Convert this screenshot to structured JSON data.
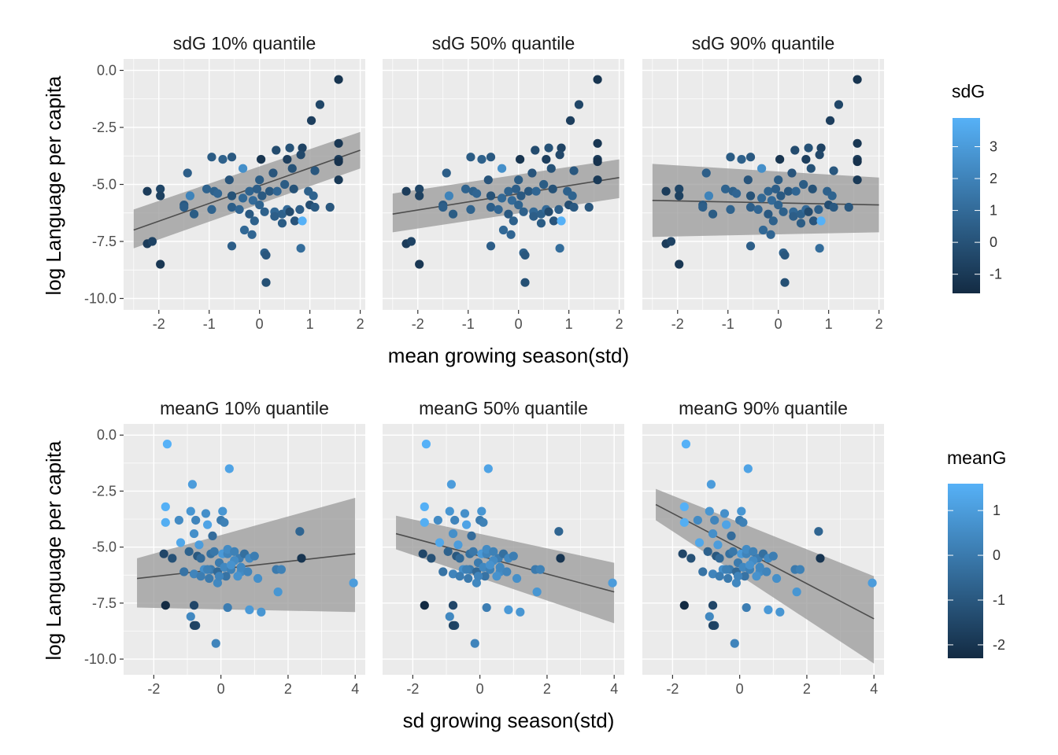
{
  "chart_data": [
    {
      "type": "scatter",
      "row": "top",
      "panel_titles": [
        "sdG 10% quantile",
        "sdG 50% quantile",
        "sdG 90% quantile"
      ],
      "xlabel": "mean growing season(std)",
      "ylabel": "log Language per capita",
      "xlim": [
        -2.7,
        2.1
      ],
      "ylim": [
        -10.5,
        0.5
      ],
      "x_ticks": [
        -2,
        -1,
        0,
        1,
        2
      ],
      "x_tick_labels": [
        "-2",
        "-1",
        "0",
        "1",
        "2"
      ],
      "y_ticks": [
        0,
        -2.5,
        -5,
        -7.5,
        -10
      ],
      "y_tick_labels": [
        "0.0",
        "-2.5",
        "-5.0",
        "-7.5",
        "-10.0"
      ],
      "grid": true,
      "legend": {
        "title": "sdG",
        "position": "right",
        "range": [
          -1.6,
          3.9
        ],
        "ticks": [
          3,
          2,
          1,
          0,
          -1
        ],
        "tick_labels": [
          "3",
          "2",
          "1",
          "0",
          "-1"
        ],
        "color_low": "#132B43",
        "color_high": "#56B1F7"
      },
      "fits": [
        {
          "x": [
            -2.5,
            2.0
          ],
          "y": [
            -7.0,
            -3.5
          ],
          "ci_lower": [
            -7.8,
            -4.3
          ],
          "ci_upper": [
            -6.1,
            -2.7
          ]
        },
        {
          "x": [
            -2.5,
            2.0
          ],
          "y": [
            -6.3,
            -4.7
          ],
          "ci_lower": [
            -7.1,
            -5.6
          ],
          "ci_upper": [
            -5.4,
            -3.9
          ]
        },
        {
          "x": [
            -2.5,
            2.0
          ],
          "y": [
            -5.7,
            -5.9
          ],
          "ci_lower": [
            -7.3,
            -7.1
          ],
          "ci_upper": [
            -4.1,
            -4.7
          ]
        }
      ],
      "points": [
        {
          "x": 1.57,
          "y": -0.4,
          "c": -1.2
        },
        {
          "x": 1.2,
          "y": -1.5,
          "c": -0.5
        },
        {
          "x": 1.03,
          "y": -2.2,
          "c": -0.8
        },
        {
          "x": 1.57,
          "y": -3.2,
          "c": -1.1
        },
        {
          "x": 1.57,
          "y": -3.9,
          "c": -0.9
        },
        {
          "x": 1.57,
          "y": -4.0,
          "c": -1.3
        },
        {
          "x": 1.57,
          "y": -4.8,
          "c": -1.0
        },
        {
          "x": 0.85,
          "y": -3.4,
          "c": -0.6
        },
        {
          "x": 0.82,
          "y": -3.7,
          "c": -0.4
        },
        {
          "x": 0.6,
          "y": -3.4,
          "c": 0.0
        },
        {
          "x": 0.33,
          "y": -3.5,
          "c": -0.3
        },
        {
          "x": 0.55,
          "y": -3.9,
          "c": -0.8
        },
        {
          "x": 1.1,
          "y": -4.4,
          "c": 0.2
        },
        {
          "x": 0.65,
          "y": -4.3,
          "c": 0.0
        },
        {
          "x": 0.27,
          "y": -4.5,
          "c": 0.1
        },
        {
          "x": 0.03,
          "y": -3.9,
          "c": -1.2
        },
        {
          "x": -0.55,
          "y": -3.8,
          "c": 0.3
        },
        {
          "x": -0.73,
          "y": -3.9,
          "c": 0.6
        },
        {
          "x": -0.95,
          "y": -3.8,
          "c": 0.4
        },
        {
          "x": -1.43,
          "y": -4.5,
          "c": 0.5
        },
        {
          "x": -0.33,
          "y": -4.3,
          "c": 2.5
        },
        {
          "x": -0.6,
          "y": -4.8,
          "c": 0.1
        },
        {
          "x": 0.0,
          "y": -4.8,
          "c": 0.4
        },
        {
          "x": -2.23,
          "y": -5.3,
          "c": -0.9
        },
        {
          "x": -1.97,
          "y": -5.2,
          "c": -0.5
        },
        {
          "x": -1.97,
          "y": -5.5,
          "c": -0.7
        },
        {
          "x": -1.38,
          "y": -5.5,
          "c": 2.0
        },
        {
          "x": -1.05,
          "y": -5.2,
          "c": 0.7
        },
        {
          "x": -0.9,
          "y": -5.3,
          "c": 0.6
        },
        {
          "x": -0.83,
          "y": -5.4,
          "c": 0.8
        },
        {
          "x": -0.55,
          "y": -5.5,
          "c": 0.0
        },
        {
          "x": -0.33,
          "y": -5.6,
          "c": 0.9
        },
        {
          "x": -0.2,
          "y": -5.3,
          "c": 0.7
        },
        {
          "x": -0.05,
          "y": -5.2,
          "c": 0.5
        },
        {
          "x": -0.13,
          "y": -5.7,
          "c": 1.0
        },
        {
          "x": 0.05,
          "y": -5.5,
          "c": 0.3
        },
        {
          "x": 0.2,
          "y": -5.3,
          "c": 0.2
        },
        {
          "x": 0.35,
          "y": -5.3,
          "c": 0.8
        },
        {
          "x": 0.5,
          "y": -5.0,
          "c": 0.4
        },
        {
          "x": 0.68,
          "y": -5.2,
          "c": 0.0
        },
        {
          "x": 0.97,
          "y": -5.3,
          "c": 0.6
        },
        {
          "x": 1.07,
          "y": -5.5,
          "c": 0.7
        },
        {
          "x": 1.0,
          "y": -5.9,
          "c": -0.2
        },
        {
          "x": 1.1,
          "y": -6.0,
          "c": 0.3
        },
        {
          "x": 1.4,
          "y": -6.0,
          "c": 0.2
        },
        {
          "x": 0.8,
          "y": -6.1,
          "c": 0.5
        },
        {
          "x": -1.5,
          "y": -5.9,
          "c": 0.3
        },
        {
          "x": -1.5,
          "y": -6.0,
          "c": 0.5
        },
        {
          "x": -1.3,
          "y": -6.3,
          "c": 0.4
        },
        {
          "x": -0.95,
          "y": -6.1,
          "c": 0.7
        },
        {
          "x": -0.55,
          "y": -6.0,
          "c": 0.5
        },
        {
          "x": -0.4,
          "y": -6.1,
          "c": 0.8
        },
        {
          "x": -0.2,
          "y": -6.3,
          "c": 0.3
        },
        {
          "x": 0.0,
          "y": -5.9,
          "c": 0.7
        },
        {
          "x": 0.1,
          "y": -6.2,
          "c": 0.6
        },
        {
          "x": 0.3,
          "y": -6.2,
          "c": 0.9
        },
        {
          "x": 0.3,
          "y": -6.4,
          "c": 0.5
        },
        {
          "x": 0.45,
          "y": -6.3,
          "c": 0.6
        },
        {
          "x": 0.45,
          "y": -6.7,
          "c": 0.4
        },
        {
          "x": 0.55,
          "y": -6.1,
          "c": 1.0
        },
        {
          "x": 0.7,
          "y": -6.6,
          "c": 0.1
        },
        {
          "x": 0.85,
          "y": -6.6,
          "c": 3.9
        },
        {
          "x": -0.1,
          "y": -6.6,
          "c": 0.6
        },
        {
          "x": -0.3,
          "y": -7.0,
          "c": 0.9
        },
        {
          "x": -0.15,
          "y": -7.2,
          "c": 0.8
        },
        {
          "x": -0.55,
          "y": -7.7,
          "c": 0.5
        },
        {
          "x": -2.23,
          "y": -7.6,
          "c": -0.9
        },
        {
          "x": -2.13,
          "y": -7.5,
          "c": -0.6
        },
        {
          "x": -1.97,
          "y": -8.5,
          "c": -1.1
        },
        {
          "x": 0.1,
          "y": -8.0,
          "c": 0.6
        },
        {
          "x": 0.13,
          "y": -8.1,
          "c": 0.2
        },
        {
          "x": 0.82,
          "y": -7.8,
          "c": 1.1
        },
        {
          "x": 0.13,
          "y": -9.3,
          "c": -0.1
        },
        {
          "x": 0.6,
          "y": -6.2,
          "c": -0.3
        }
      ]
    },
    {
      "type": "scatter",
      "row": "bottom",
      "panel_titles": [
        "meanG 10% quantile",
        "meanG 50% quantile",
        "meanG 90% quantile"
      ],
      "xlabel": "sd growing season(std)",
      "ylabel": "log Language per capita",
      "xlim": [
        -2.9,
        4.3
      ],
      "ylim": [
        -10.7,
        0.5
      ],
      "x_ticks": [
        -2,
        0,
        2,
        4
      ],
      "x_tick_labels": [
        "-2",
        "0",
        "2",
        "4"
      ],
      "y_ticks": [
        0,
        -2.5,
        -5,
        -7.5,
        -10
      ],
      "y_tick_labels": [
        "0.0",
        "-2.5",
        "-5.0",
        "-7.5",
        "-10.0"
      ],
      "grid": true,
      "legend": {
        "title": "meanG",
        "position": "right",
        "range": [
          -2.3,
          1.6
        ],
        "ticks": [
          1,
          0,
          -1,
          -2
        ],
        "tick_labels": [
          "1",
          "0",
          "-1",
          "-2"
        ],
        "color_low": "#132B43",
        "color_high": "#56B1F7"
      },
      "fits": [
        {
          "x": [
            -2.5,
            4.0
          ],
          "y": [
            -6.4,
            -5.3
          ],
          "ci_lower": [
            -7.7,
            -7.9
          ],
          "ci_upper": [
            -5.5,
            -2.8
          ]
        },
        {
          "x": [
            -2.5,
            4.0
          ],
          "y": [
            -4.4,
            -7.0
          ],
          "ci_lower": [
            -5.1,
            -8.4
          ],
          "ci_upper": [
            -3.6,
            -5.7
          ]
        },
        {
          "x": [
            -2.5,
            4.0
          ],
          "y": [
            -3.1,
            -8.2
          ],
          "ci_lower": [
            -3.8,
            -10.2
          ],
          "ci_upper": [
            -2.4,
            -6.3
          ]
        }
      ],
      "points": [
        {
          "x": -1.6,
          "y": -0.4,
          "c": 1.6
        },
        {
          "x": 0.25,
          "y": -1.5,
          "c": 1.2
        },
        {
          "x": -0.85,
          "y": -2.2,
          "c": 1.0
        },
        {
          "x": -1.65,
          "y": -3.2,
          "c": 1.57
        },
        {
          "x": -0.9,
          "y": -3.4,
          "c": 0.8
        },
        {
          "x": -0.45,
          "y": -3.5,
          "c": 0.6
        },
        {
          "x": 0.05,
          "y": -3.4,
          "c": 0.8
        },
        {
          "x": -1.25,
          "y": -3.8,
          "c": 0.5
        },
        {
          "x": -1.65,
          "y": -3.9,
          "c": 1.5
        },
        {
          "x": -0.75,
          "y": -3.8,
          "c": 0.3
        },
        {
          "x": 0.0,
          "y": -3.8,
          "c": 0.0
        },
        {
          "x": 0.1,
          "y": -3.9,
          "c": 0.2
        },
        {
          "x": -0.4,
          "y": -4.0,
          "c": 1.2
        },
        {
          "x": -0.8,
          "y": -4.4,
          "c": 0.6
        },
        {
          "x": -0.25,
          "y": -4.5,
          "c": -0.4
        },
        {
          "x": 2.35,
          "y": -4.3,
          "c": -0.6
        },
        {
          "x": -1.2,
          "y": -4.8,
          "c": 1.3
        },
        {
          "x": -0.65,
          "y": -4.9,
          "c": 1.0
        },
        {
          "x": -0.95,
          "y": -5.2,
          "c": -0.7
        },
        {
          "x": -1.7,
          "y": -5.3,
          "c": -1.5
        },
        {
          "x": -1.45,
          "y": -5.5,
          "c": -1.2
        },
        {
          "x": -0.7,
          "y": -5.4,
          "c": -1.0
        },
        {
          "x": -0.6,
          "y": -5.5,
          "c": -0.5
        },
        {
          "x": -0.3,
          "y": -5.3,
          "c": -0.3
        },
        {
          "x": 0.05,
          "y": -5.3,
          "c": 0.9
        },
        {
          "x": 0.2,
          "y": -5.3,
          "c": 0.3
        },
        {
          "x": 0.2,
          "y": -5.1,
          "c": 0.5
        },
        {
          "x": 0.4,
          "y": -5.2,
          "c": 0.2
        },
        {
          "x": 0.55,
          "y": -5.5,
          "c": 0.1
        },
        {
          "x": 0.7,
          "y": -5.3,
          "c": -0.3
        },
        {
          "x": 0.85,
          "y": -5.5,
          "c": 0.4
        },
        {
          "x": 1.0,
          "y": -5.4,
          "c": 0.1
        },
        {
          "x": 2.4,
          "y": -5.5,
          "c": -2.0
        },
        {
          "x": -0.05,
          "y": -5.7,
          "c": 0.0
        },
        {
          "x": 0.4,
          "y": -5.6,
          "c": 0.5
        },
        {
          "x": -0.5,
          "y": -6.0,
          "c": 0.6
        },
        {
          "x": -0.3,
          "y": -6.0,
          "c": 0.0
        },
        {
          "x": -0.1,
          "y": -6.1,
          "c": -0.5
        },
        {
          "x": 0.1,
          "y": -5.9,
          "c": 0.4
        },
        {
          "x": 0.3,
          "y": -6.0,
          "c": 0.2
        },
        {
          "x": 0.6,
          "y": -6.1,
          "c": 0.5
        },
        {
          "x": 0.8,
          "y": -6.1,
          "c": 0.3
        },
        {
          "x": 1.65,
          "y": -6.0,
          "c": 0.0
        },
        {
          "x": 1.8,
          "y": -6.0,
          "c": 0.2
        },
        {
          "x": -1.1,
          "y": -6.1,
          "c": -0.2
        },
        {
          "x": -0.8,
          "y": -6.2,
          "c": 0.3
        },
        {
          "x": -0.6,
          "y": -6.3,
          "c": 0.1
        },
        {
          "x": -0.35,
          "y": -6.4,
          "c": 0.0
        },
        {
          "x": -0.1,
          "y": -6.6,
          "c": 0.4
        },
        {
          "x": 0.5,
          "y": -6.3,
          "c": 0.7
        },
        {
          "x": 1.1,
          "y": -6.4,
          "c": 0.6
        },
        {
          "x": 0.15,
          "y": -6.3,
          "c": -0.2
        },
        {
          "x": -0.05,
          "y": -6.3,
          "c": 0.3
        },
        {
          "x": 1.7,
          "y": -7.0,
          "c": 0.8
        },
        {
          "x": -1.65,
          "y": -7.6,
          "c": -2.3
        },
        {
          "x": -0.8,
          "y": -7.6,
          "c": -1.5
        },
        {
          "x": 0.2,
          "y": -7.7,
          "c": 0.1
        },
        {
          "x": 0.85,
          "y": -7.8,
          "c": 0.9
        },
        {
          "x": 1.2,
          "y": -7.9,
          "c": 0.8
        },
        {
          "x": -0.9,
          "y": -8.1,
          "c": 0.4
        },
        {
          "x": -0.75,
          "y": -8.5,
          "c": -1.4
        },
        {
          "x": -0.8,
          "y": -8.5,
          "c": -1.6
        },
        {
          "x": -0.15,
          "y": -9.3,
          "c": 0.3
        },
        {
          "x": 3.95,
          "y": -6.6,
          "c": 1.0
        },
        {
          "x": -0.4,
          "y": -6.0,
          "c": 0.2
        },
        {
          "x": 0.3,
          "y": -5.8,
          "c": 0.7
        },
        {
          "x": -0.2,
          "y": -5.2,
          "c": -0.1
        },
        {
          "x": 0.6,
          "y": -5.9,
          "c": 0.4
        }
      ]
    }
  ]
}
